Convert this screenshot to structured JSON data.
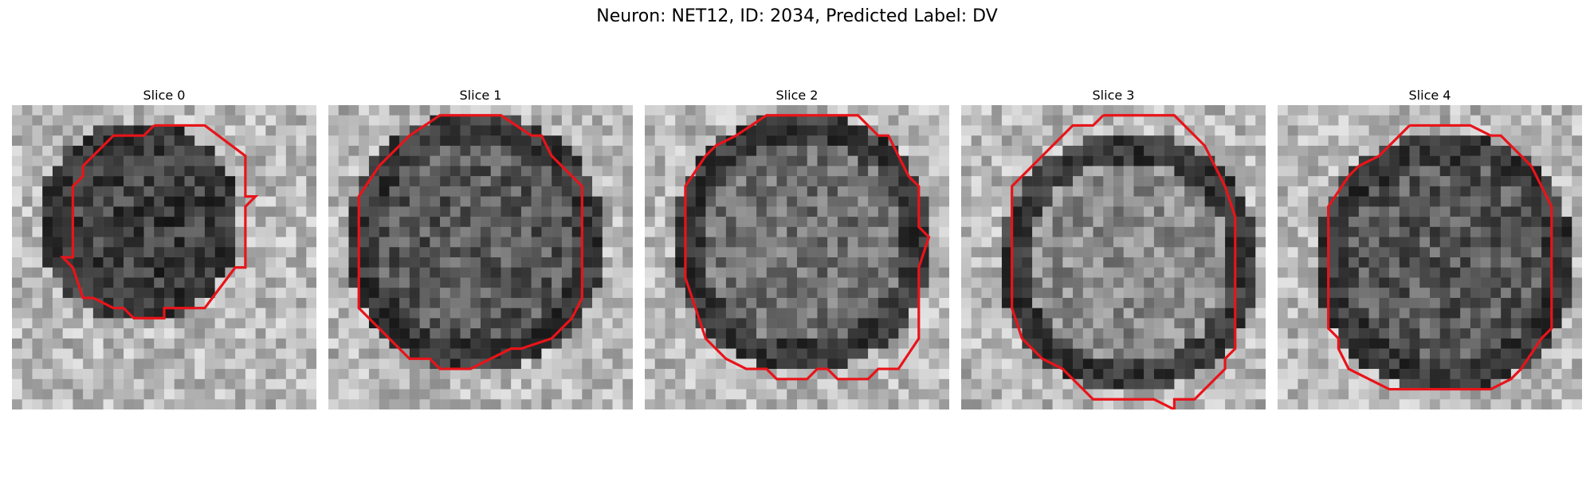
{
  "figure": {
    "title": "Neuron: NET12, ID: 2034, Predicted Label: DV"
  },
  "slices": [
    {
      "label": "Slice 0"
    },
    {
      "label": "Slice 1"
    },
    {
      "label": "Slice 2"
    },
    {
      "label": "Slice 3"
    },
    {
      "label": "Slice 4"
    }
  ],
  "colors": {
    "contour": "#e8141a",
    "background": "#ffffff"
  }
}
